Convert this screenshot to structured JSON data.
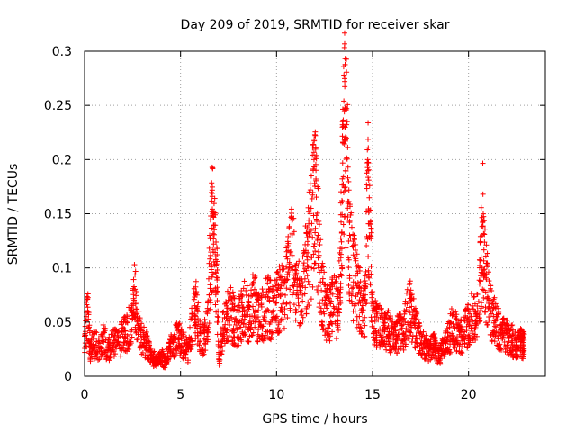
{
  "chart_data": {
    "type": "scatter",
    "title": "Day 209 of 2019, SRMTID for receiver skar",
    "xlabel": "GPS time / hours",
    "ylabel": "SRMTID / TECUs",
    "xlim": [
      0,
      24
    ],
    "ylim": [
      0,
      0.3
    ],
    "xticks": [
      0,
      5,
      10,
      15,
      20
    ],
    "xtick_labels": [
      "0",
      "5",
      "10",
      "15",
      "20"
    ],
    "yticks": [
      0,
      0.05,
      0.1,
      0.15,
      0.2,
      0.25,
      0.3
    ],
    "ytick_labels": [
      "0",
      "0.05",
      "0.1",
      "0.15",
      "0.2",
      "0.25",
      "0.3"
    ],
    "grid": true,
    "marker": "+",
    "color": "#ff0000",
    "series": [
      {
        "name": "SRMTID",
        "x": [
          0.0,
          0.15,
          0.3,
          0.5,
          0.75,
          1.0,
          1.25,
          1.5,
          1.75,
          2.0,
          2.2,
          2.45,
          2.6,
          2.75,
          3.0,
          3.2,
          3.4,
          3.6,
          3.8,
          4.0,
          4.2,
          4.4,
          4.6,
          4.8,
          5.0,
          5.2,
          5.4,
          5.6,
          5.8,
          6.0,
          6.2,
          6.4,
          6.55,
          6.65,
          6.75,
          6.9,
          7.0,
          7.2,
          7.4,
          7.6,
          7.8,
          8.0,
          8.2,
          8.4,
          8.6,
          8.8,
          9.0,
          9.2,
          9.4,
          9.6,
          9.8,
          10.0,
          10.2,
          10.4,
          10.6,
          10.8,
          11.0,
          11.2,
          11.4,
          11.6,
          11.8,
          11.95,
          12.05,
          12.2,
          12.4,
          12.6,
          12.8,
          13.0,
          13.2,
          13.35,
          13.45,
          13.55,
          13.65,
          13.8,
          14.0,
          14.2,
          14.4,
          14.6,
          14.75,
          14.85,
          15.0,
          15.2,
          15.4,
          15.6,
          15.8,
          16.0,
          16.2,
          16.4,
          16.6,
          16.8,
          17.0,
          17.2,
          17.4,
          17.6,
          17.8,
          18.0,
          18.2,
          18.4,
          18.6,
          18.8,
          19.0,
          19.2,
          19.4,
          19.6,
          19.8,
          20.0,
          20.2,
          20.4,
          20.6,
          20.75,
          20.9,
          21.1,
          21.3,
          21.5,
          21.7,
          21.9,
          22.1,
          22.3,
          22.5,
          22.7,
          22.8
        ],
        "y": [
          0.037,
          0.071,
          0.03,
          0.035,
          0.033,
          0.041,
          0.029,
          0.038,
          0.036,
          0.045,
          0.05,
          0.063,
          0.103,
          0.055,
          0.042,
          0.035,
          0.027,
          0.02,
          0.016,
          0.022,
          0.015,
          0.028,
          0.036,
          0.045,
          0.041,
          0.033,
          0.027,
          0.058,
          0.078,
          0.046,
          0.042,
          0.058,
          0.127,
          0.166,
          0.151,
          0.106,
          0.016,
          0.052,
          0.065,
          0.073,
          0.062,
          0.059,
          0.068,
          0.079,
          0.064,
          0.087,
          0.071,
          0.066,
          0.075,
          0.078,
          0.072,
          0.08,
          0.091,
          0.085,
          0.116,
          0.144,
          0.094,
          0.09,
          0.102,
          0.128,
          0.155,
          0.2,
          0.182,
          0.143,
          0.087,
          0.073,
          0.067,
          0.085,
          0.072,
          0.149,
          0.216,
          0.272,
          0.247,
          0.142,
          0.112,
          0.097,
          0.079,
          0.081,
          0.2,
          0.176,
          0.069,
          0.058,
          0.054,
          0.049,
          0.053,
          0.045,
          0.042,
          0.051,
          0.048,
          0.067,
          0.075,
          0.055,
          0.044,
          0.037,
          0.031,
          0.029,
          0.034,
          0.025,
          0.027,
          0.04,
          0.045,
          0.057,
          0.048,
          0.043,
          0.051,
          0.06,
          0.065,
          0.058,
          0.107,
          0.168,
          0.111,
          0.079,
          0.063,
          0.055,
          0.048,
          0.045,
          0.044,
          0.039,
          0.034,
          0.037,
          0.035
        ]
      }
    ]
  }
}
